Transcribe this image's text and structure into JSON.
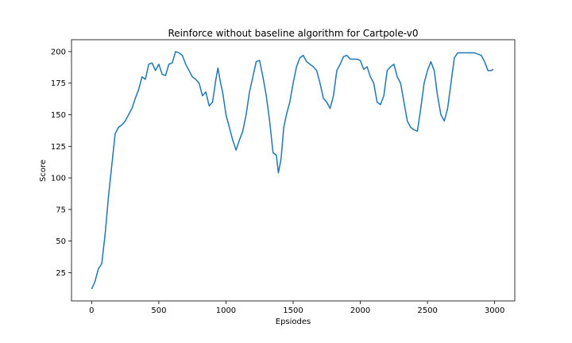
{
  "chart_data": {
    "type": "line",
    "title": "Reinforce without baseline algorithm for Cartpole-v0",
    "x_label": "Epsiodes",
    "y_label": "Score",
    "x": [
      0,
      25,
      50,
      75,
      100,
      125,
      150,
      175,
      200,
      225,
      250,
      275,
      300,
      325,
      350,
      375,
      400,
      425,
      450,
      475,
      500,
      525,
      550,
      575,
      600,
      625,
      650,
      675,
      700,
      725,
      750,
      775,
      800,
      825,
      850,
      875,
      900,
      925,
      940,
      960,
      975,
      1000,
      1025,
      1050,
      1075,
      1100,
      1125,
      1150,
      1175,
      1200,
      1225,
      1250,
      1275,
      1300,
      1325,
      1350,
      1375,
      1390,
      1410,
      1430,
      1450,
      1475,
      1500,
      1525,
      1550,
      1575,
      1600,
      1625,
      1650,
      1675,
      1700,
      1725,
      1750,
      1775,
      1800,
      1825,
      1850,
      1875,
      1900,
      1925,
      1950,
      1975,
      2000,
      2025,
      2050,
      2075,
      2100,
      2125,
      2150,
      2175,
      2200,
      2225,
      2250,
      2275,
      2300,
      2325,
      2350,
      2375,
      2400,
      2425,
      2450,
      2475,
      2500,
      2525,
      2550,
      2575,
      2600,
      2625,
      2650,
      2675,
      2700,
      2725,
      2750,
      2800,
      2850,
      2900,
      2925,
      2950,
      2975,
      2990
    ],
    "series": [
      {
        "color": "#1f77b4",
        "values": [
          12,
          18,
          28,
          32,
          55,
          85,
          110,
          135,
          140,
          142,
          145,
          150,
          155,
          163,
          170,
          180,
          178,
          190,
          191,
          185,
          190,
          182,
          181,
          190,
          191,
          200,
          199,
          197,
          190,
          185,
          180,
          178,
          175,
          165,
          168,
          157,
          160,
          178,
          187,
          175,
          168,
          150,
          140,
          130,
          122,
          130,
          137,
          150,
          168,
          180,
          192,
          193,
          180,
          165,
          145,
          120,
          118,
          104,
          115,
          140,
          150,
          160,
          175,
          188,
          195,
          197,
          192,
          190,
          188,
          185,
          175,
          163,
          160,
          155,
          165,
          185,
          190,
          196,
          197,
          194,
          194,
          194,
          193,
          186,
          188,
          180,
          175,
          160,
          158,
          165,
          185,
          188,
          190,
          180,
          175,
          160,
          145,
          140,
          138,
          137,
          155,
          175,
          185,
          192,
          185,
          165,
          150,
          145,
          155,
          175,
          195,
          199,
          199,
          199,
          199,
          197,
          192,
          185,
          185,
          186
        ]
      }
    ],
    "xlim": [
      -150,
      3150
    ],
    "ylim": [
      2.6,
      209.4
    ],
    "xticks": [
      0,
      500,
      1000,
      1500,
      2000,
      2500,
      3000
    ],
    "yticks": [
      25,
      50,
      75,
      100,
      125,
      150,
      175,
      200
    ]
  }
}
